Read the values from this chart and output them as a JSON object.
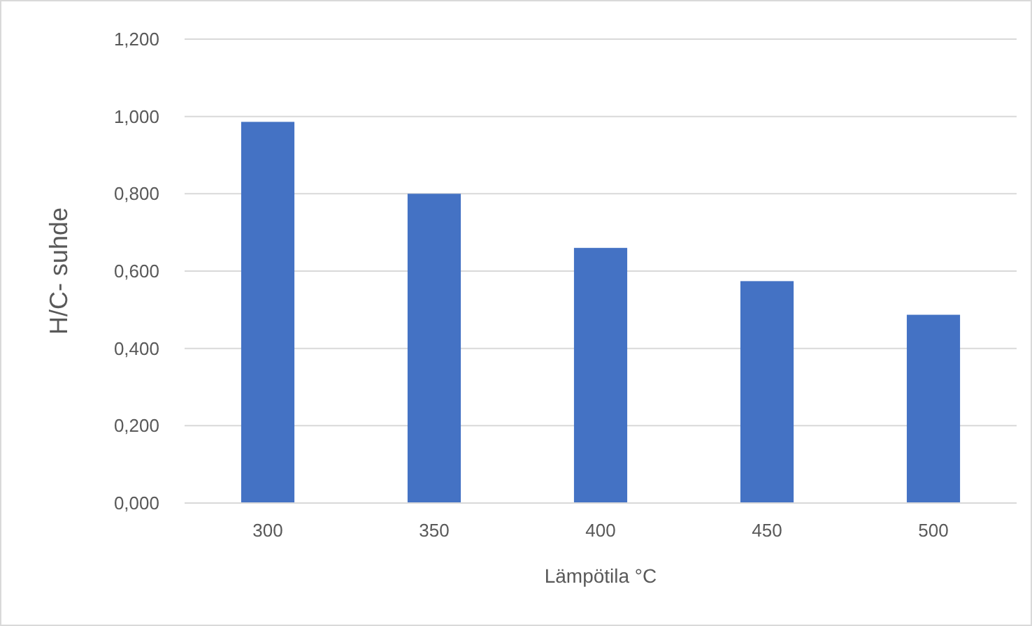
{
  "chart_data": {
    "type": "bar",
    "xlabel": "Lämpötila °C",
    "ylabel": "H/C- suhde",
    "categories": [
      "300",
      "350",
      "400",
      "450",
      "500"
    ],
    "values": [
      0.986,
      0.8,
      0.66,
      0.574,
      0.487
    ],
    "color": "#4472c4",
    "ylim": [
      0,
      1.2
    ],
    "yticks": [
      {
        "value": 0,
        "label": "0,000"
      },
      {
        "value": 0.2,
        "label": "0,200"
      },
      {
        "value": 0.4,
        "label": "0,400"
      },
      {
        "value": 0.6,
        "label": "0,600"
      },
      {
        "value": 0.8,
        "label": "0,800"
      },
      {
        "value": 1,
        "label": "1,000"
      },
      {
        "value": 1.2,
        "label": "1,200"
      }
    ],
    "grid": "y"
  }
}
